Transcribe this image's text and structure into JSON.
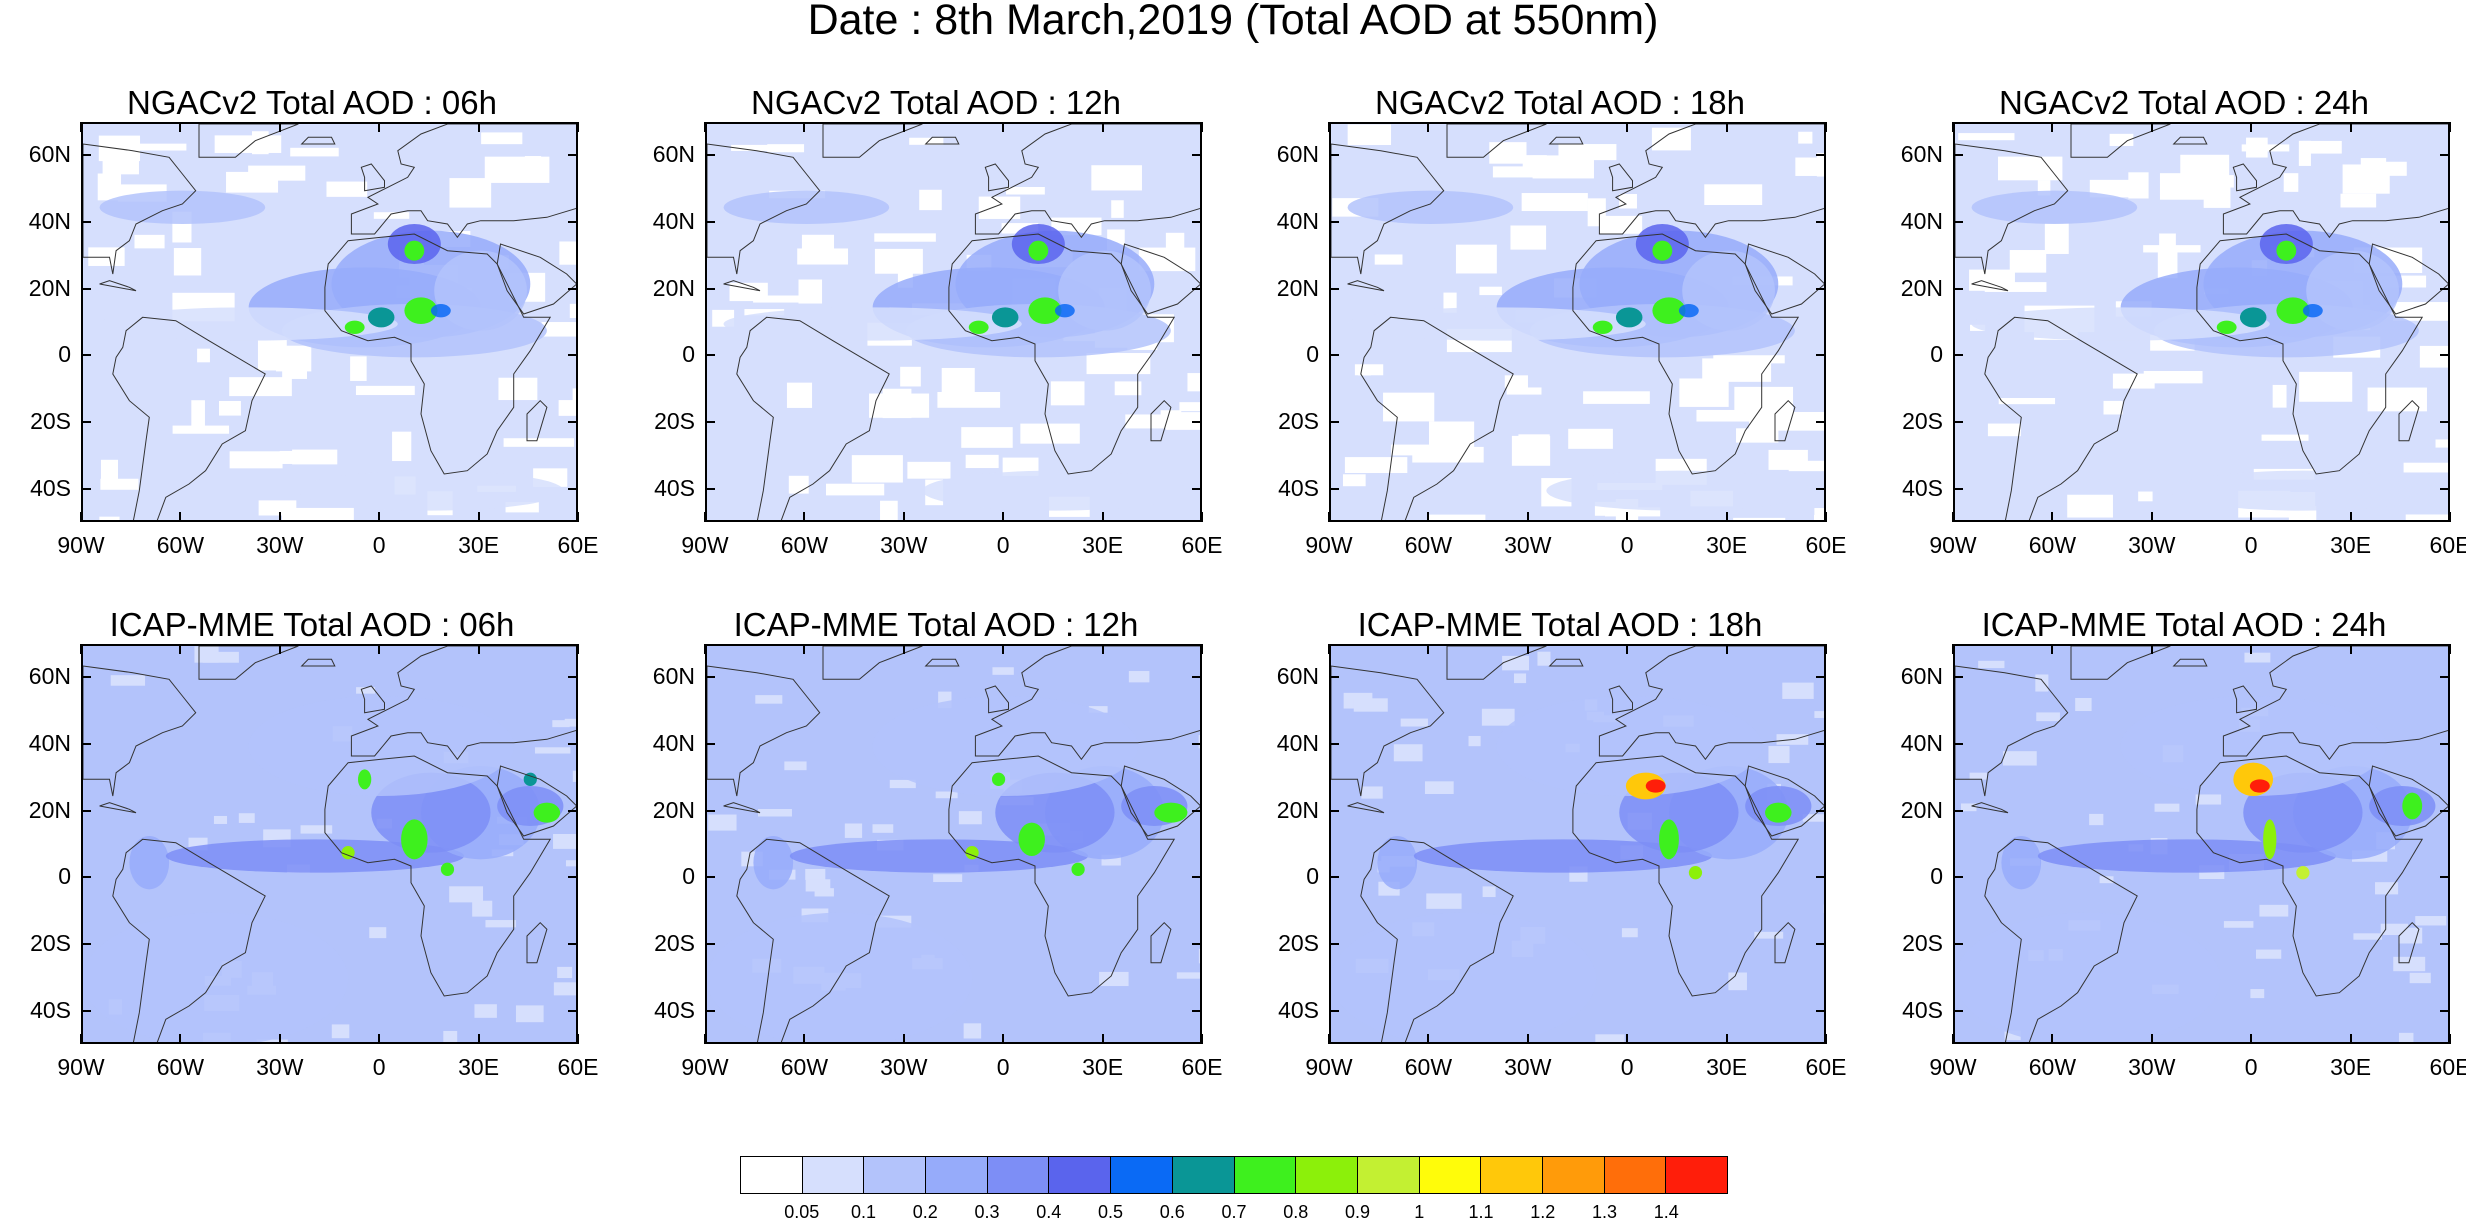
{
  "title": "Date : 8th March,2019 (Total AOD at 550nm)",
  "map_axes": {
    "lat_labels": [
      "60N",
      "40N",
      "20N",
      "0",
      "20S",
      "40S"
    ],
    "lon_labels": [
      "90W",
      "60W",
      "30W",
      "0",
      "30E",
      "60E"
    ],
    "lat_range": [
      -50,
      70
    ],
    "lon_range": [
      -90,
      60
    ]
  },
  "panels": [
    {
      "title": "NGACv2 Total AOD : 06h",
      "model": "NGACv2",
      "lead": "06h"
    },
    {
      "title": "NGACv2 Total AOD : 12h",
      "model": "NGACv2",
      "lead": "12h"
    },
    {
      "title": "NGACv2 Total AOD : 18h",
      "model": "NGACv2",
      "lead": "18h"
    },
    {
      "title": "NGACv2 Total AOD : 24h",
      "model": "NGACv2",
      "lead": "24h"
    },
    {
      "title": "ICAP-MME Total AOD : 06h",
      "model": "ICAP-MME",
      "lead": "06h"
    },
    {
      "title": "ICAP-MME Total AOD : 12h",
      "model": "ICAP-MME",
      "lead": "12h"
    },
    {
      "title": "ICAP-MME Total AOD : 18h",
      "model": "ICAP-MME",
      "lead": "18h"
    },
    {
      "title": "ICAP-MME Total AOD : 24h",
      "model": "ICAP-MME",
      "lead": "24h"
    }
  ],
  "colorbar": {
    "levels": [
      "0.05",
      "0.1",
      "0.2",
      "0.3",
      "0.4",
      "0.5",
      "0.6",
      "0.7",
      "0.8",
      "0.9",
      "1",
      "1.1",
      "1.2",
      "1.3",
      "1.4"
    ],
    "colors": [
      "#ffffff",
      "#d6dffd",
      "#b3c3fb",
      "#96abfa",
      "#7d8ef6",
      "#5a64ed",
      "#0a6af5",
      "#0a9696",
      "#3ef01e",
      "#8cf00a",
      "#c3f032",
      "#fffc0a",
      "#ffc80a",
      "#ff9b0a",
      "#ff6e0a",
      "#ff1e0a"
    ]
  }
}
